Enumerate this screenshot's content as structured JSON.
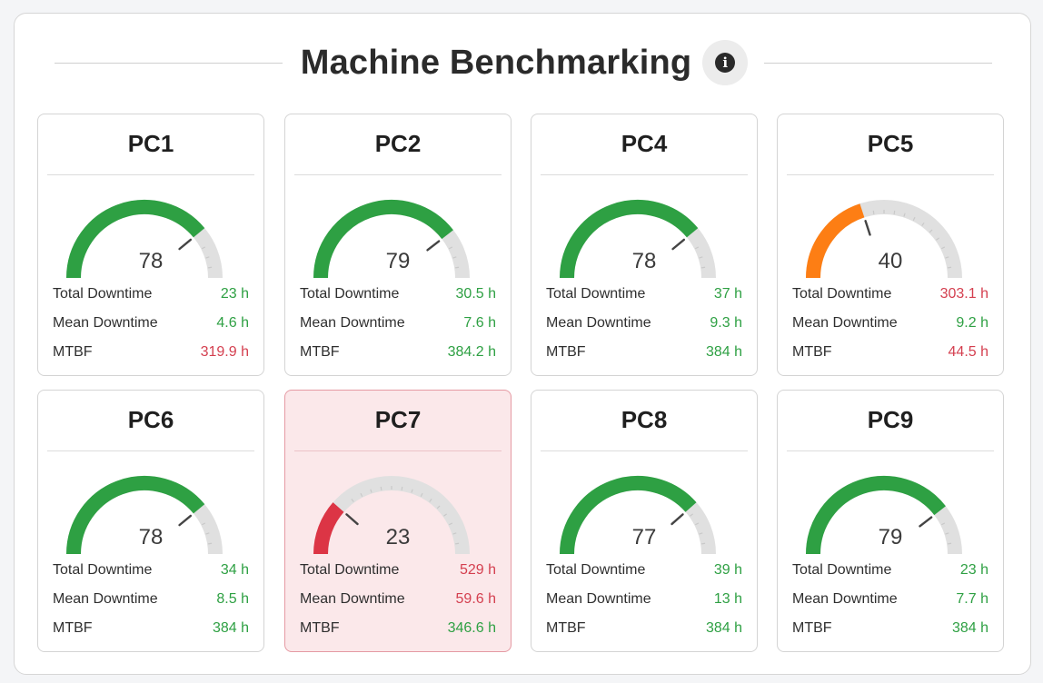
{
  "header": {
    "title": "Machine Benchmarking",
    "info_icon": "info-icon"
  },
  "colors": {
    "green": "#2ea043",
    "orange": "#fd7e14",
    "red": "#dc3545",
    "track": "#e0e0e0"
  },
  "labels": {
    "total": "Total Downtime",
    "mean": "Mean Downtime",
    "mtbf": "MTBF"
  },
  "machines": [
    {
      "name": "PC1",
      "score": 78,
      "status": "good",
      "total": "23 h",
      "total_ok": true,
      "mean": "4.6 h",
      "mean_ok": true,
      "mtbf": "319.9 h",
      "mtbf_ok": false
    },
    {
      "name": "PC2",
      "score": 79,
      "status": "good",
      "total": "30.5 h",
      "total_ok": true,
      "mean": "7.6 h",
      "mean_ok": true,
      "mtbf": "384.2 h",
      "mtbf_ok": true
    },
    {
      "name": "PC4",
      "score": 78,
      "status": "good",
      "total": "37 h",
      "total_ok": true,
      "mean": "9.3 h",
      "mean_ok": true,
      "mtbf": "384 h",
      "mtbf_ok": true
    },
    {
      "name": "PC5",
      "score": 40,
      "status": "warn",
      "total": "303.1 h",
      "total_ok": false,
      "mean": "9.2 h",
      "mean_ok": true,
      "mtbf": "44.5 h",
      "mtbf_ok": false
    },
    {
      "name": "PC6",
      "score": 78,
      "status": "good",
      "total": "34 h",
      "total_ok": true,
      "mean": "8.5 h",
      "mean_ok": true,
      "mtbf": "384 h",
      "mtbf_ok": true
    },
    {
      "name": "PC7",
      "score": 23,
      "status": "alert",
      "total": "529 h",
      "total_ok": false,
      "mean": "59.6 h",
      "mean_ok": false,
      "mtbf": "346.6 h",
      "mtbf_ok": true
    },
    {
      "name": "PC8",
      "score": 77,
      "status": "good",
      "total": "39 h",
      "total_ok": true,
      "mean": "13 h",
      "mean_ok": true,
      "mtbf": "384 h",
      "mtbf_ok": true
    },
    {
      "name": "PC9",
      "score": 79,
      "status": "good",
      "total": "23 h",
      "total_ok": true,
      "mean": "7.7 h",
      "mean_ok": true,
      "mtbf": "384 h",
      "mtbf_ok": true
    }
  ]
}
